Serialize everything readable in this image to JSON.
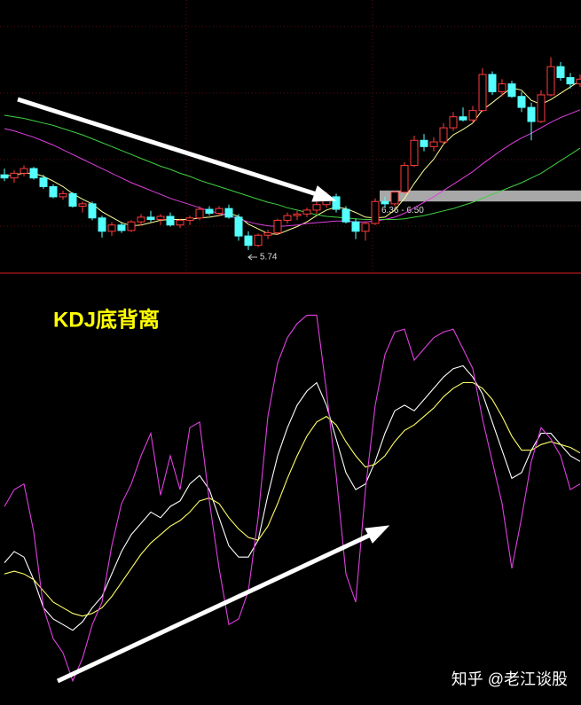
{
  "chart_data": [
    {
      "type": "candlestick",
      "ylim": [
        5.48,
        8.93
      ],
      "up_color": "#ff3c3c",
      "down_color": "#54ffff",
      "ohlc": [
        [
          6.7,
          6.78,
          6.62,
          6.66
        ],
        [
          6.66,
          6.76,
          6.6,
          6.72
        ],
        [
          6.72,
          6.82,
          6.68,
          6.78
        ],
        [
          6.78,
          6.8,
          6.64,
          6.66
        ],
        [
          6.66,
          6.7,
          6.52,
          6.55
        ],
        [
          6.55,
          6.58,
          6.4,
          6.42
        ],
        [
          6.42,
          6.5,
          6.38,
          6.46
        ],
        [
          6.46,
          6.48,
          6.28,
          6.3
        ],
        [
          6.3,
          6.36,
          6.22,
          6.33
        ],
        [
          6.33,
          6.36,
          6.12,
          6.15
        ],
        [
          6.15,
          6.18,
          5.9,
          5.98
        ],
        [
          5.98,
          6.1,
          5.92,
          6.06
        ],
        [
          6.06,
          6.1,
          5.96,
          5.99
        ],
        [
          5.99,
          6.12,
          5.97,
          6.1
        ],
        [
          6.1,
          6.2,
          6.05,
          6.16
        ],
        [
          6.16,
          6.24,
          6.1,
          6.13
        ],
        [
          6.13,
          6.2,
          6.06,
          6.17
        ],
        [
          6.17,
          6.22,
          6.04,
          6.06
        ],
        [
          6.06,
          6.14,
          6.02,
          6.12
        ],
        [
          6.12,
          6.18,
          6.06,
          6.15
        ],
        [
          6.15,
          6.3,
          6.12,
          6.26
        ],
        [
          6.26,
          6.3,
          6.18,
          6.21
        ],
        [
          6.21,
          6.3,
          6.17,
          6.27
        ],
        [
          6.27,
          6.32,
          6.14,
          6.16
        ],
        [
          6.16,
          6.2,
          5.86,
          5.92
        ],
        [
          5.92,
          5.98,
          5.74,
          5.8
        ],
        [
          5.8,
          5.95,
          5.78,
          5.93
        ],
        [
          5.93,
          6.0,
          5.88,
          5.96
        ],
        [
          5.96,
          6.14,
          5.94,
          6.12
        ],
        [
          6.12,
          6.22,
          6.08,
          6.18
        ],
        [
          6.18,
          6.24,
          6.12,
          6.2
        ],
        [
          6.2,
          6.28,
          6.16,
          6.25
        ],
        [
          6.25,
          6.36,
          6.2,
          6.32
        ],
        [
          6.32,
          6.48,
          6.28,
          6.42
        ],
        [
          6.42,
          6.46,
          6.22,
          6.26
        ],
        [
          6.26,
          6.3,
          6.08,
          6.1
        ],
        [
          6.1,
          6.14,
          5.88,
          5.98
        ],
        [
          5.98,
          6.1,
          5.86,
          6.08
        ],
        [
          6.08,
          6.4,
          6.06,
          6.36
        ],
        [
          6.36,
          6.42,
          6.28,
          6.33
        ],
        [
          6.33,
          6.5,
          6.3,
          6.48
        ],
        [
          6.48,
          6.86,
          6.46,
          6.82
        ],
        [
          6.82,
          7.2,
          6.8,
          7.14
        ],
        [
          7.14,
          7.22,
          7.0,
          7.06
        ],
        [
          7.06,
          7.18,
          7.0,
          7.12
        ],
        [
          7.12,
          7.36,
          7.08,
          7.3
        ],
        [
          7.3,
          7.5,
          7.26,
          7.44
        ],
        [
          7.44,
          7.56,
          7.38,
          7.4
        ],
        [
          7.4,
          7.58,
          7.36,
          7.52
        ],
        [
          7.52,
          8.06,
          7.5,
          7.98
        ],
        [
          7.98,
          8.02,
          7.72,
          7.76
        ],
        [
          7.76,
          7.92,
          7.7,
          7.86
        ],
        [
          7.86,
          7.9,
          7.68,
          7.7
        ],
        [
          7.7,
          7.76,
          7.5,
          7.56
        ],
        [
          7.56,
          7.62,
          7.14,
          7.38
        ],
        [
          7.38,
          7.78,
          7.36,
          7.72
        ],
        [
          7.72,
          8.2,
          7.7,
          8.08
        ],
        [
          8.08,
          8.14,
          7.9,
          7.94
        ],
        [
          7.94,
          8.0,
          7.8,
          7.86
        ],
        [
          7.86,
          7.98,
          7.82,
          7.92
        ]
      ],
      "series": [
        {
          "color": "#ffff99",
          "values": [
            6.68,
            6.7,
            6.72,
            6.72,
            6.68,
            6.62,
            6.55,
            6.46,
            6.39,
            6.33,
            6.23,
            6.16,
            6.09,
            6.05,
            6.06,
            6.09,
            6.12,
            6.13,
            6.13,
            6.13,
            6.15,
            6.16,
            6.18,
            6.21,
            6.17,
            6.07,
            6.01,
            5.95,
            5.94,
            5.99,
            6.04,
            6.1,
            6.18,
            6.25,
            6.29,
            6.27,
            6.22,
            6.16,
            6.15,
            6.16,
            6.25,
            6.4,
            6.59,
            6.76,
            6.9,
            7.09,
            7.21,
            7.28,
            7.36,
            7.53,
            7.62,
            7.72,
            7.81,
            7.78,
            7.65,
            7.6,
            7.66,
            7.74,
            7.82,
            7.9
          ]
        },
        {
          "color": "#e040e0",
          "values": [
            7.29,
            7.26,
            7.22,
            7.18,
            7.13,
            7.08,
            7.02,
            6.96,
            6.9,
            6.84,
            6.78,
            6.72,
            6.66,
            6.6,
            6.55,
            6.5,
            6.45,
            6.4,
            6.36,
            6.32,
            6.28,
            6.24,
            6.21,
            6.18,
            6.14,
            6.1,
            6.07,
            6.05,
            6.04,
            6.05,
            6.06,
            6.08,
            6.09,
            6.1,
            6.11,
            6.11,
            6.1,
            6.1,
            6.11,
            6.13,
            6.16,
            6.21,
            6.28,
            6.35,
            6.42,
            6.5,
            6.58,
            6.66,
            6.74,
            6.84,
            6.93,
            7.02,
            7.1,
            7.17,
            7.23,
            7.3,
            7.37,
            7.43,
            7.48,
            7.53
          ]
        },
        {
          "color": "#40d040",
          "values": [
            7.46,
            7.44,
            7.42,
            7.39,
            7.36,
            7.33,
            7.29,
            7.25,
            7.21,
            7.16,
            7.11,
            7.06,
            7.01,
            6.96,
            6.91,
            6.86,
            6.81,
            6.77,
            6.72,
            6.68,
            6.63,
            6.59,
            6.55,
            6.51,
            6.47,
            6.43,
            6.39,
            6.35,
            6.32,
            6.28,
            6.25,
            6.22,
            6.19,
            6.17,
            6.16,
            6.15,
            6.14,
            6.13,
            6.13,
            6.13,
            6.13,
            6.14,
            6.16,
            6.18,
            6.21,
            6.24,
            6.27,
            6.31,
            6.35,
            6.4,
            6.45,
            6.5,
            6.55,
            6.6,
            6.66,
            6.72,
            6.8,
            6.88,
            6.96,
            7.04
          ]
        }
      ],
      "low_label": {
        "index": 25,
        "text": "5.74"
      },
      "band": {
        "range": [
          6.36,
          6.5
        ],
        "label": "6.36 - 6.50",
        "color": "#a8a8a8"
      }
    },
    {
      "type": "line",
      "title": "KDJ底背离",
      "title_color": "#ffff00",
      "ylim": [
        -25,
        120
      ],
      "series": [
        {
          "color": "#ffffff",
          "values": [
            24,
            28,
            26,
            18,
            8,
            4,
            2,
            0,
            3,
            8,
            12,
            20,
            28,
            34,
            38,
            42,
            40,
            44,
            46,
            52,
            55,
            50,
            40,
            30,
            26,
            26,
            32,
            48,
            62,
            72,
            80,
            85,
            88,
            80,
            68,
            56,
            50,
            52,
            60,
            70,
            78,
            80,
            78,
            82,
            86,
            90,
            93,
            94,
            90,
            84,
            74,
            64,
            54,
            56,
            64,
            70,
            70,
            66,
            62,
            60
          ]
        },
        {
          "color": "#ffff66",
          "values": [
            20,
            21,
            20,
            18,
            14,
            10,
            8,
            6,
            5,
            6,
            8,
            12,
            17,
            22,
            27,
            31,
            34,
            37,
            39,
            42,
            46,
            47,
            45,
            40,
            36,
            33,
            32,
            37,
            45,
            54,
            62,
            69,
            74,
            76,
            73,
            67,
            62,
            58,
            59,
            62,
            67,
            71,
            73,
            76,
            79,
            83,
            86,
            88,
            88,
            86,
            82,
            76,
            69,
            64,
            64,
            66,
            67,
            66,
            65,
            63
          ]
        },
        {
          "color": "#e040e0",
          "values": [
            44,
            50,
            52,
            35,
            8,
            -3,
            -8,
            -18,
            -10,
            2,
            10,
            30,
            45,
            52,
            62,
            70,
            48,
            62,
            50,
            72,
            74,
            46,
            22,
            2,
            4,
            14,
            40,
            76,
            95,
            104,
            109,
            112,
            112,
            85,
            55,
            20,
            10,
            50,
            80,
            98,
            106,
            107,
            96,
            100,
            104,
            106,
            107,
            100,
            93,
            75,
            60,
            45,
            22,
            40,
            60,
            72,
            68,
            62,
            50,
            52
          ]
        }
      ]
    }
  ],
  "watermark": "知乎 @老江谈股"
}
